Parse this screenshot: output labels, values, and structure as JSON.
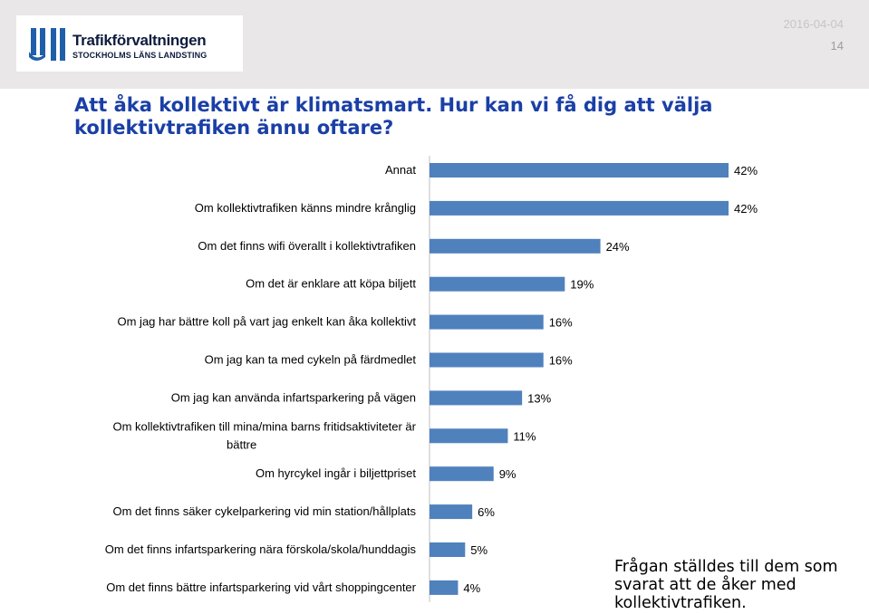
{
  "header": {
    "logo_name": "Trafikförvaltningen",
    "logo_subtitle": "STOCKHOLMS LÄNS LANDSTING",
    "date": "2016-04-04",
    "page_number": "14"
  },
  "title": "Att åka kollektivt är klimatsmart. Hur kan vi få dig att välja kollektivtrafiken ännu oftare?",
  "note": "Frågan ställdes till dem som svarat att de åker med kollektivtrafiken.",
  "colors": {
    "bar": "#4f81bd",
    "title": "#1a3fa6"
  },
  "chart_data": {
    "type": "bar",
    "orientation": "horizontal",
    "value_format": "percent",
    "xlim": [
      0,
      42
    ],
    "categories": [
      [
        "Annat"
      ],
      [
        "Om kollektivtrafiken känns mindre krånglig"
      ],
      [
        "Om det finns wifi överallt i kollektivtrafiken"
      ],
      [
        "Om det är enklare att köpa biljett"
      ],
      [
        "Om jag har bättre koll på vart jag enkelt kan åka kollektivt"
      ],
      [
        "Om jag kan ta med cykeln på färdmedlet"
      ],
      [
        "Om jag kan använda infartsparkering på vägen"
      ],
      [
        "Om kollektivtrafiken till mina/mina barns fritidsaktiviteter är",
        "bättre"
      ],
      [
        "Om hyrcykel ingår i biljettpriset"
      ],
      [
        "Om det finns säker cykelparkering vid min station/hållplats"
      ],
      [
        "Om det finns infartsparkering nära förskola/skola/hunddagis"
      ],
      [
        "Om det finns bättre infartsparkering vid vårt shoppingcenter"
      ]
    ],
    "values": [
      42,
      42,
      24,
      19,
      16,
      16,
      13,
      11,
      9,
      6,
      5,
      4
    ],
    "data_labels": [
      "42%",
      "42%",
      "24%",
      "19%",
      "16%",
      "16%",
      "13%",
      "11%",
      "9%",
      "6%",
      "5%",
      "4%"
    ]
  }
}
